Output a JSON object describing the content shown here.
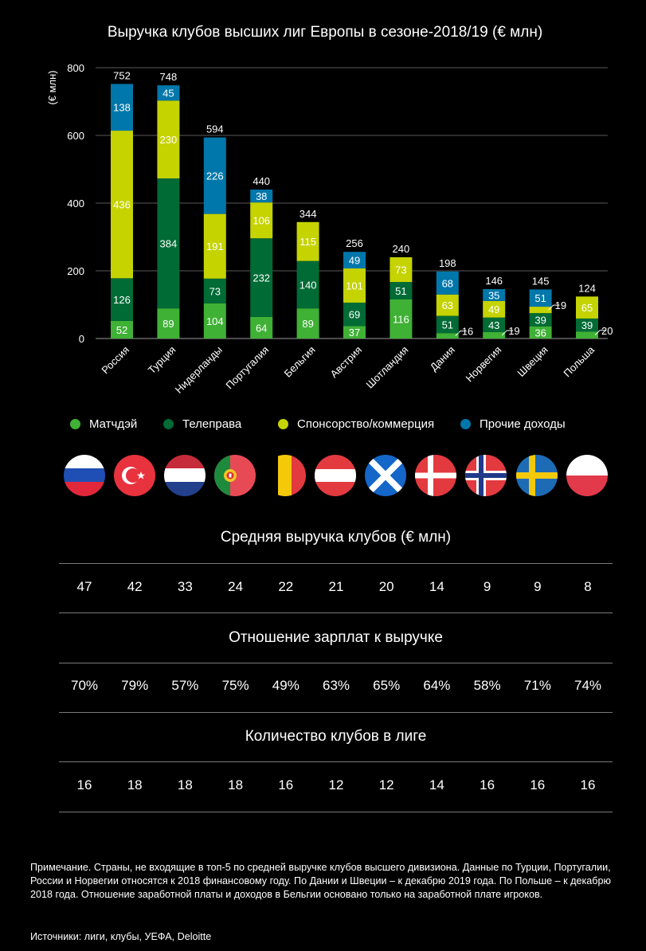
{
  "chart_data": {
    "type": "bar",
    "stacked": true,
    "title": "Выручка клубов высших лиг Европы в сезоне-2018/19 (€ млн)",
    "ylabel": "(€ млн)",
    "ylim": [
      0,
      800
    ],
    "yticks": [
      0,
      200,
      400,
      600,
      800
    ],
    "grid": true,
    "legend_position": "bottom",
    "categories": [
      "Россия",
      "Турция",
      "Нидерланды",
      "Португалия",
      "Бельгия",
      "Австрия",
      "Шотландия",
      "Дания",
      "Норвегия",
      "Швеция",
      "Польша"
    ],
    "series": [
      {
        "name": "Матчдэй",
        "color": "#3fb135",
        "values": [
          52,
          89,
          104,
          64,
          89,
          37,
          116,
          16,
          19,
          36,
          20
        ]
      },
      {
        "name": "Телеправа",
        "color": "#006b35",
        "values": [
          126,
          384,
          73,
          232,
          140,
          69,
          51,
          51,
          43,
          39,
          39
        ]
      },
      {
        "name": "Спонсорство/коммерция",
        "color": "#c5d300",
        "values": [
          436,
          230,
          191,
          106,
          115,
          101,
          73,
          63,
          49,
          19,
          65
        ]
      },
      {
        "name": "Прочие доходы",
        "color": "#0077aa",
        "values": [
          138,
          45,
          226,
          38,
          0,
          49,
          0,
          68,
          35,
          51,
          0
        ]
      }
    ],
    "totals": [
      752,
      748,
      594,
      440,
      344,
      256,
      240,
      198,
      146,
      145,
      124
    ]
  },
  "flags": [
    "russia-flag",
    "turkey-flag",
    "netherlands-flag",
    "portugal-flag",
    "belgium-flag",
    "austria-flag",
    "scotland-flag",
    "denmark-flag",
    "norway-flag",
    "sweden-flag",
    "poland-flag"
  ],
  "tables": [
    {
      "title": "Средняя выручка клубов (€ млн)",
      "values": [
        "47",
        "42",
        "33",
        "24",
        "22",
        "21",
        "20",
        "14",
        "9",
        "9",
        "8"
      ]
    },
    {
      "title": "Отношение зарплат к выручке",
      "values": [
        "70%",
        "79%",
        "57%",
        "75%",
        "49%",
        "63%",
        "65%",
        "64%",
        "58%",
        "71%",
        "74%"
      ]
    },
    {
      "title": "Количество клубов в лиге",
      "values": [
        "16",
        "18",
        "18",
        "18",
        "16",
        "12",
        "12",
        "14",
        "16",
        "16",
        "16"
      ]
    }
  ],
  "note": "Примечание. Страны, не входящие в топ-5 по средней выручке клубов высшего дивизиона. Данные по Турции, Португалии, России и Норвегии относятся к 2018 финансовому году. По Дании и Швеции – к декабрю 2019 года. По Польше – к декабрю 2018 года. Отношение заработной платы и доходов в Бельгии основано только на заработной плате игроков.",
  "source": "Источники: лиги, клубы, УЕФА, Deloitte"
}
